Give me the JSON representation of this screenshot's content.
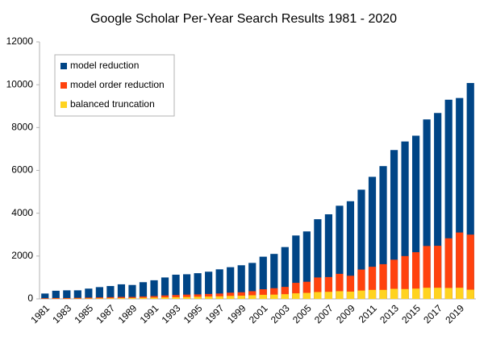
{
  "chart_data": {
    "type": "bar",
    "title": "Google Scholar Per-Year Search Results 1981 - 2020",
    "categories": [
      "1981",
      null,
      "1983",
      null,
      "1985",
      null,
      "1987",
      null,
      "1989",
      null,
      "1991",
      null,
      "1993",
      null,
      "1995",
      null,
      "1997",
      null,
      "1999",
      null,
      "2001",
      null,
      "2003",
      null,
      "2005",
      null,
      "2007",
      null,
      "2009",
      null,
      "2011",
      null,
      "2013",
      null,
      "2015",
      null,
      "2017",
      null,
      "2019",
      null
    ],
    "series": [
      {
        "name": "model reduction",
        "color": "#004586",
        "values": [
          250,
          380,
          400,
          400,
          480,
          550,
          600,
          680,
          650,
          780,
          870,
          1000,
          1130,
          1150,
          1200,
          1270,
          1380,
          1480,
          1570,
          1680,
          1970,
          2100,
          2420,
          2960,
          3150,
          3720,
          3950,
          4350,
          4560,
          5100,
          5700,
          6200,
          6950,
          7350,
          7620,
          8380,
          8680,
          9300,
          9380,
          10080
        ]
      },
      {
        "name": "model order reduction",
        "color": "#ff420e",
        "values": [
          30,
          40,
          40,
          50,
          60,
          70,
          80,
          90,
          90,
          110,
          130,
          160,
          180,
          200,
          210,
          230,
          250,
          290,
          310,
          360,
          450,
          500,
          560,
          750,
          800,
          1000,
          1020,
          1170,
          1080,
          1370,
          1500,
          1620,
          1830,
          2000,
          2180,
          2470,
          2480,
          2830,
          3100,
          3000
        ]
      },
      {
        "name": "balanced truncation",
        "color": "#ffd320",
        "values": [
          5,
          10,
          10,
          15,
          20,
          25,
          30,
          35,
          40,
          50,
          60,
          70,
          80,
          90,
          100,
          110,
          120,
          140,
          150,
          170,
          190,
          200,
          220,
          260,
          280,
          320,
          330,
          360,
          340,
          390,
          420,
          420,
          470,
          460,
          480,
          520,
          520,
          510,
          520,
          430
        ]
      }
    ],
    "ylim": [
      0,
      12000
    ],
    "yticks": [
      0,
      2000,
      4000,
      6000,
      8000,
      10000,
      12000
    ],
    "grid": false,
    "legend": "upper left"
  }
}
